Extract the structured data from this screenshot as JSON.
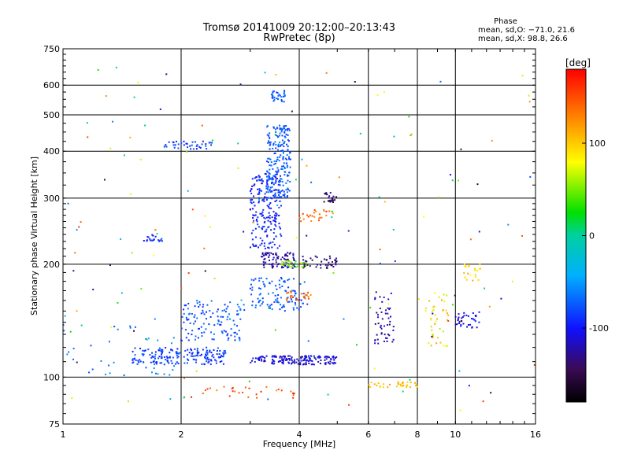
{
  "chart_data": {
    "type": "scatter",
    "title": "Tromsø 20141009 20:12:00–20:13:43",
    "subtitle": "RwPretec (8p)",
    "xlabel": "Frequency [MHz]",
    "ylabel": "Stationary phase Virtual Height [km]",
    "x_scale": "log",
    "y_scale": "log",
    "xlim": [
      1,
      16
    ],
    "ylim": [
      75,
      750
    ],
    "x_ticks": [
      1,
      2,
      4,
      6,
      8,
      10,
      16
    ],
    "x_tick_labels": [
      "1",
      "2",
      "4",
      "6",
      "8",
      "10",
      "16"
    ],
    "y_ticks": [
      75,
      100,
      200,
      300,
      400,
      500,
      600,
      750
    ],
    "y_tick_labels": [
      "75",
      "100",
      "200",
      "300",
      "400",
      "500",
      "600",
      "750"
    ],
    "grid": true,
    "phase_info": {
      "header": "Phase",
      "line_o": "mean, sd,O: −71.0, 21.6",
      "line_x": "mean, sd,X: 98.8, 26.6"
    },
    "colorbar": {
      "label": "[deg]",
      "min": -180,
      "max": 180,
      "ticks": [
        100,
        0,
        -100
      ],
      "tick_labels": [
        "100",
        "0",
        "-100"
      ]
    },
    "point_clusters": [
      {
        "x": [
          1.5,
          2.6
        ],
        "y": [
          108,
          120
        ],
        "n": 180,
        "phase": [
          -100,
          -70
        ]
      },
      {
        "x": [
          2.0,
          2.9
        ],
        "y": [
          125,
          160
        ],
        "n": 120,
        "phase": [
          -95,
          -60
        ]
      },
      {
        "x": [
          3.0,
          3.6
        ],
        "y": [
          220,
          350
        ],
        "n": 200,
        "phase": [
          -110,
          -80
        ]
      },
      {
        "x": [
          3.3,
          3.8
        ],
        "y": [
          300,
          470
        ],
        "n": 220,
        "phase": [
          -90,
          -60
        ]
      },
      {
        "x": [
          3.2,
          3.9
        ],
        "y": [
          195,
          215
        ],
        "n": 90,
        "phase": [
          -140,
          -110
        ]
      },
      {
        "x": [
          3.0,
          5.0
        ],
        "y": [
          108,
          114
        ],
        "n": 160,
        "phase": [
          -130,
          -90
        ]
      },
      {
        "x": [
          3.0,
          4.2
        ],
        "y": [
          150,
          185
        ],
        "n": 110,
        "phase": [
          -90,
          -60
        ]
      },
      {
        "x": [
          3.4,
          3.7
        ],
        "y": [
          540,
          580
        ],
        "n": 30,
        "phase": [
          -90,
          -60
        ]
      },
      {
        "x": [
          4.0,
          5.0
        ],
        "y": [
          195,
          210
        ],
        "n": 45,
        "phase": [
          -150,
          -120
        ]
      },
      {
        "x": [
          4.6,
          5.0
        ],
        "y": [
          290,
          310
        ],
        "n": 25,
        "phase": [
          -160,
          -120
        ]
      },
      {
        "x": [
          1.8,
          2.4
        ],
        "y": [
          405,
          425
        ],
        "n": 40,
        "phase": [
          -100,
          -70
        ]
      },
      {
        "x": [
          1.6,
          1.8
        ],
        "y": [
          230,
          240
        ],
        "n": 20,
        "phase": [
          -110,
          -80
        ]
      },
      {
        "x": [
          6.2,
          7.0
        ],
        "y": [
          120,
          170
        ],
        "n": 50,
        "phase": [
          -140,
          -100
        ]
      },
      {
        "x": [
          6.0,
          8.0
        ],
        "y": [
          94,
          97
        ],
        "n": 35,
        "phase": [
          90,
          120
        ]
      },
      {
        "x": [
          8.4,
          9.6
        ],
        "y": [
          120,
          170
        ],
        "n": 40,
        "phase": [
          60,
          120
        ]
      },
      {
        "x": [
          10.0,
          11.5
        ],
        "y": [
          135,
          150
        ],
        "n": 35,
        "phase": [
          -130,
          -90
        ]
      },
      {
        "x": [
          10.5,
          11.6
        ],
        "y": [
          180,
          200
        ],
        "n": 20,
        "phase": [
          80,
          120
        ]
      },
      {
        "x": [
          4.0,
          5.0
        ],
        "y": [
          260,
          280
        ],
        "n": 25,
        "phase": [
          120,
          170
        ]
      },
      {
        "x": [
          3.7,
          4.3
        ],
        "y": [
          160,
          170
        ],
        "n": 25,
        "phase": [
          120,
          160
        ]
      },
      {
        "x": [
          3.6,
          4.2
        ],
        "y": [
          196,
          204
        ],
        "n": 25,
        "phase": [
          30,
          80
        ]
      },
      {
        "x": [
          2.0,
          4.0
        ],
        "y": [
          88,
          95
        ],
        "n": 30,
        "phase": [
          120,
          170
        ]
      },
      {
        "x": [
          1.0,
          2.0
        ],
        "y": [
          100,
          140
        ],
        "n": 40,
        "phase": [
          -80,
          -50
        ]
      },
      {
        "x": [
          1.0,
          16.0
        ],
        "y": [
          80,
          700
        ],
        "n": 150,
        "phase": [
          -160,
          160
        ]
      }
    ]
  }
}
